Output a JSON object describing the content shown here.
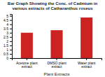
{
  "chart_data": {
    "type": "bar",
    "title": "Bar Graph Showing the Conc. of Cadmium in various extracts of Catharanthus roseus",
    "categories": [
      "Acetone plant extract",
      "DMSO plant extract",
      "Water plant extract"
    ],
    "xlabel": "Plant Extracts",
    "values": [
      3.0,
      3.3,
      4.8
    ],
    "color": "#cc2222",
    "ylim": [
      0,
      5.2
    ],
    "yticks": [
      0,
      0.5,
      1,
      1.5,
      2,
      2.5,
      3,
      3.5,
      4,
      4.5,
      5
    ],
    "grid": false
  }
}
